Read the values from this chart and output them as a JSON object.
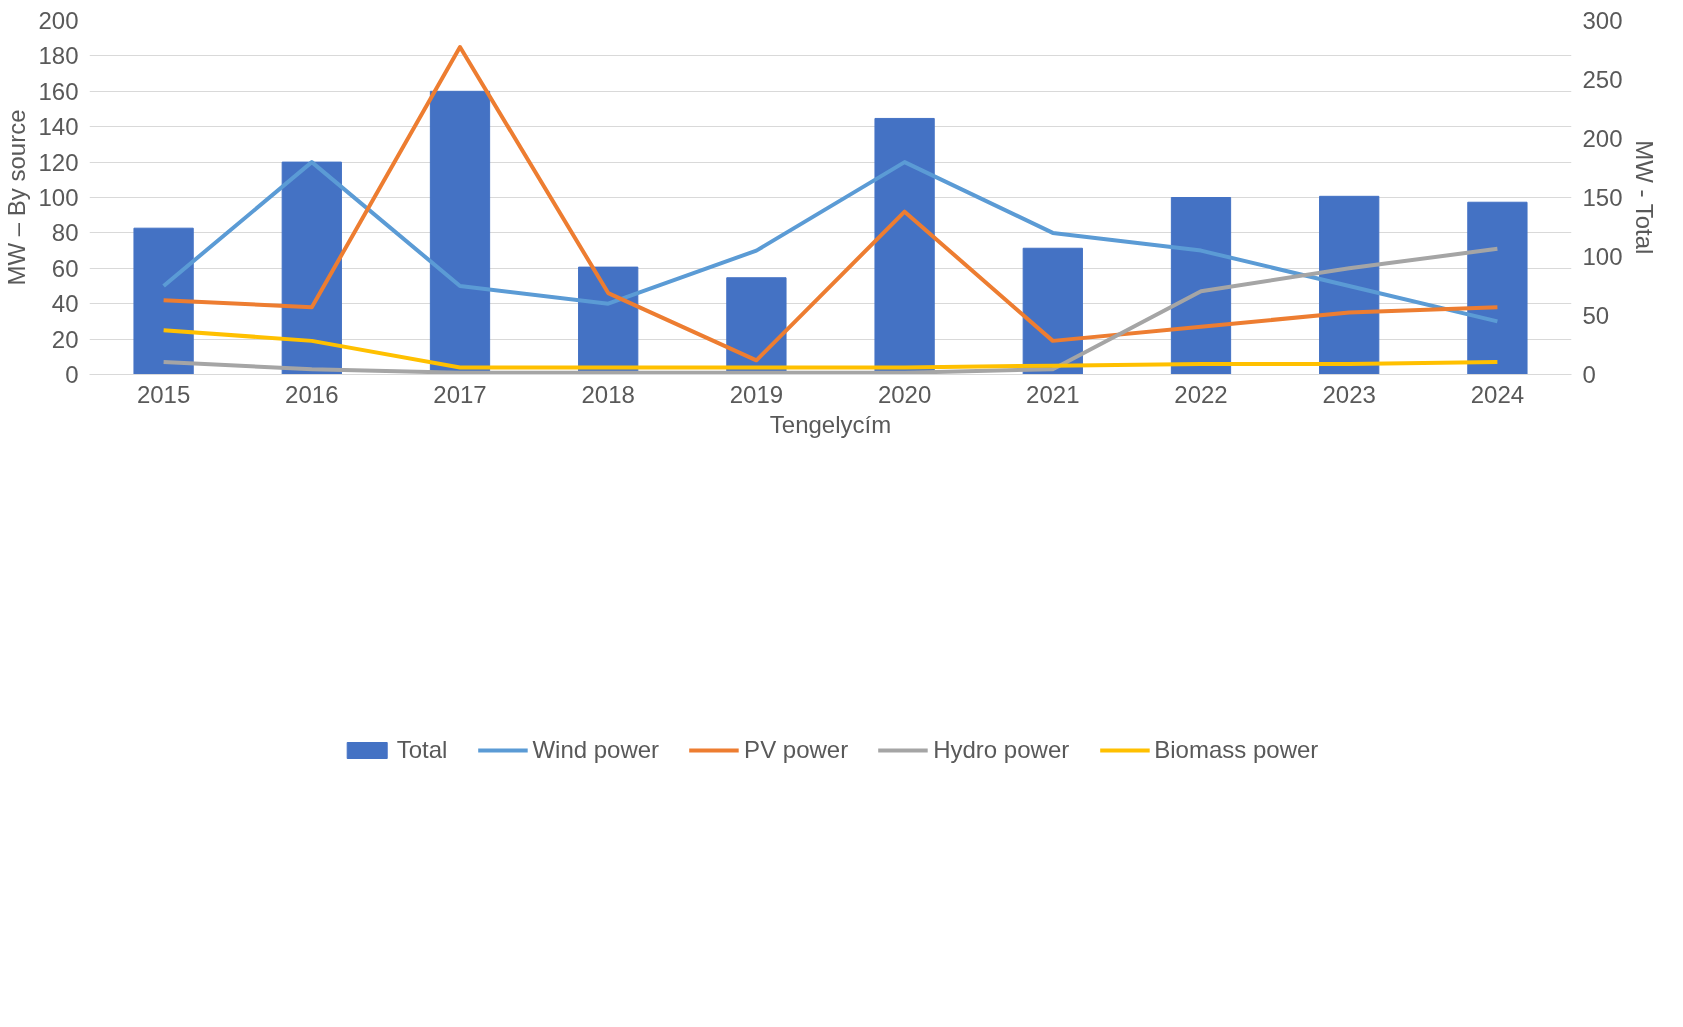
{
  "chart_data": {
    "type": "line",
    "xlabel": "Tengelycím",
    "ylabel": "MW – By source",
    "y2label": "MW - Total",
    "categories": [
      "2015",
      "2016",
      "2017",
      "2018",
      "2019",
      "2020",
      "2021",
      "2022",
      "2023",
      "2024"
    ],
    "series": [
      {
        "name": "Total",
        "type": "bar",
        "axis": "y2",
        "color": "#4472c4",
        "values": [
          124,
          180,
          240,
          91,
          82,
          217,
          107,
          150,
          151,
          146
        ]
      },
      {
        "name": "Wind power",
        "color": "#5b9bd5",
        "values": [
          50,
          120,
          50,
          40,
          70,
          120,
          80,
          70,
          50,
          30
        ]
      },
      {
        "name": "PV power",
        "color": "#ed7d31",
        "values": [
          42,
          38,
          185,
          46,
          8,
          92,
          19,
          27,
          35,
          38
        ]
      },
      {
        "name": "Hydro power",
        "color": "#a5a5a5",
        "values": [
          7,
          3,
          1,
          1,
          1,
          1,
          3,
          47,
          60,
          71
        ]
      },
      {
        "name": "Biomass power",
        "color": "#ffc000",
        "values": [
          25,
          19,
          4,
          4,
          4,
          4,
          5,
          6,
          6,
          7
        ]
      }
    ],
    "ylim": [
      0,
      200
    ],
    "yticks": [
      0,
      20,
      40,
      60,
      80,
      100,
      120,
      140,
      160,
      180,
      200
    ],
    "y2lim": [
      0,
      300
    ],
    "y2ticks": [
      0,
      50,
      100,
      150,
      200,
      250,
      300
    ],
    "grid": "y",
    "legend": "bottom"
  }
}
